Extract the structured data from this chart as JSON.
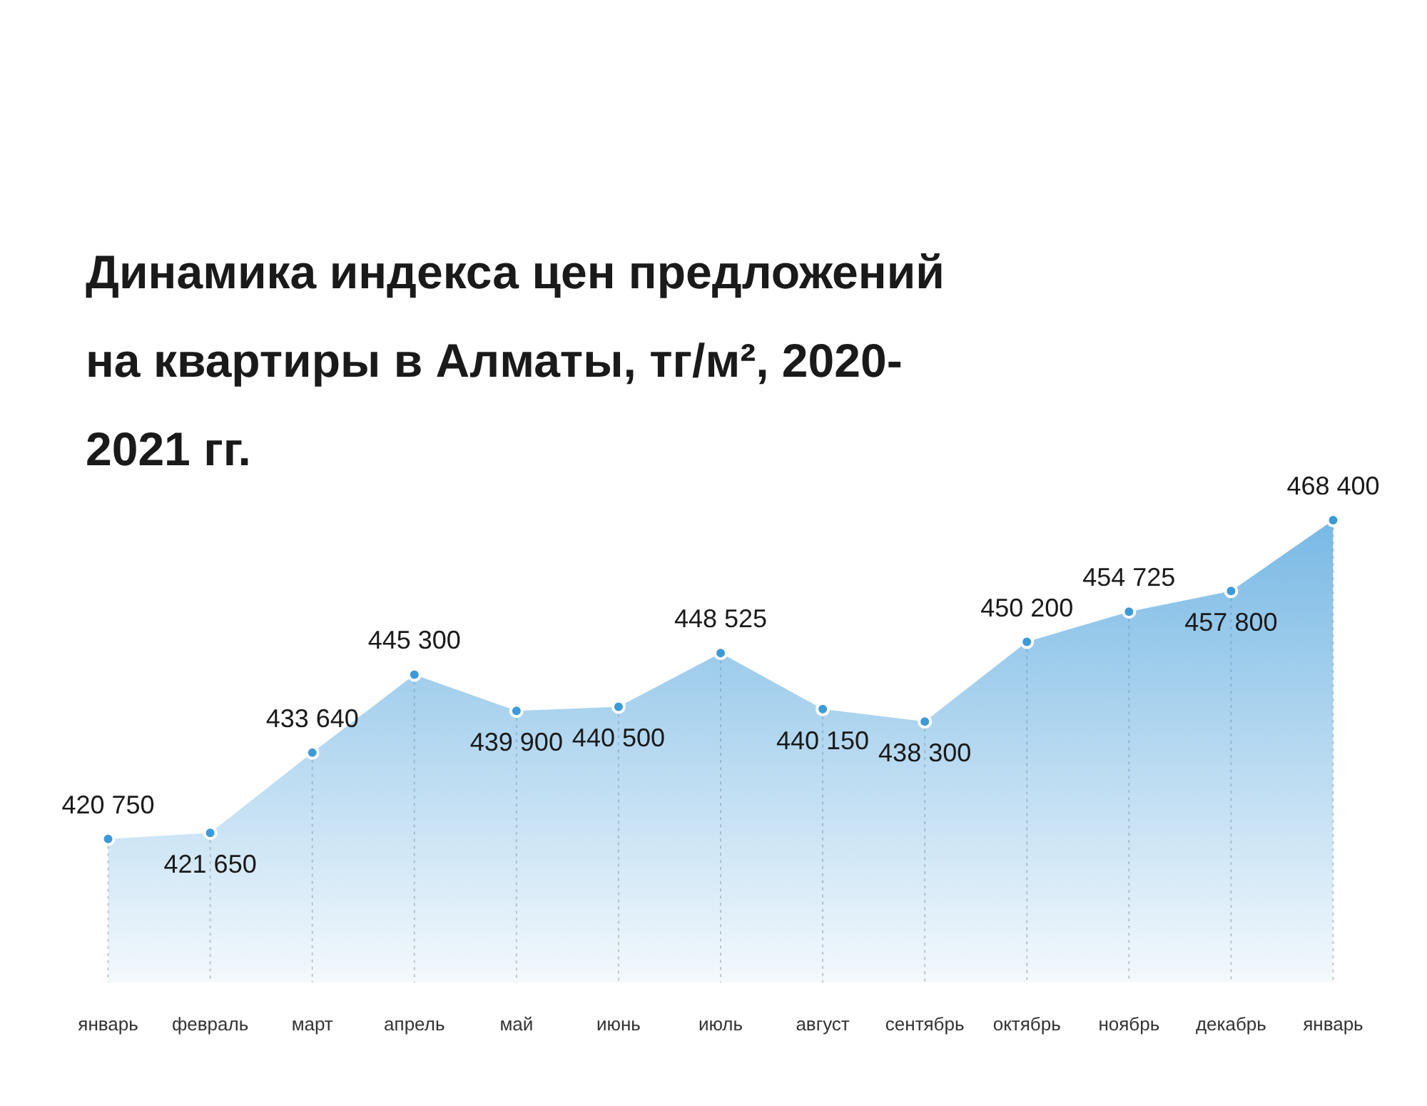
{
  "chart_data": {
    "type": "area",
    "title": "Динамика индекса цен предложений на квартиры в Алматы, тг/м², 2020-2021 гг.",
    "categories": [
      "январь",
      "февраль",
      "март",
      "апрель",
      "май",
      "июнь",
      "июль",
      "август",
      "сентябрь",
      "октябрь",
      "ноябрь",
      "декабрь",
      "январь"
    ],
    "series": [
      {
        "color": "#3d9ad9",
        "values": [
          420750,
          421650,
          433640,
          445300,
          439900,
          440500,
          448525,
          440150,
          438300,
          450200,
          454725,
          457800,
          468400
        ]
      }
    ],
    "data_labels": true,
    "marker": "circle",
    "legend": false
  }
}
